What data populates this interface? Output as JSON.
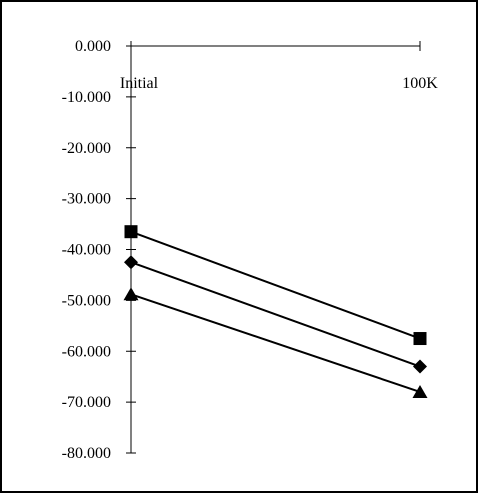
{
  "chart_data": {
    "type": "line",
    "title": "",
    "xlabel": "",
    "ylabel": "",
    "categories": [
      "Initial",
      "100K"
    ],
    "y_ticks": [
      "0.000",
      "-10.000",
      "-20.000",
      "-30.000",
      "-40.000",
      "-50.000",
      "-60.000",
      "-70.000",
      "-80.000"
    ],
    "ylim": [
      -80,
      0
    ],
    "grid": false,
    "legend": "none",
    "series": [
      {
        "marker": "square",
        "values": [
          -36.5,
          -57.5
        ]
      },
      {
        "marker": "diamond",
        "values": [
          -42.5,
          -63.0
        ]
      },
      {
        "marker": "triangle",
        "values": [
          -48.8,
          -68.0
        ]
      }
    ],
    "colors": {
      "line": "#000000",
      "marker": "#000000",
      "background": "#ffffff"
    }
  }
}
